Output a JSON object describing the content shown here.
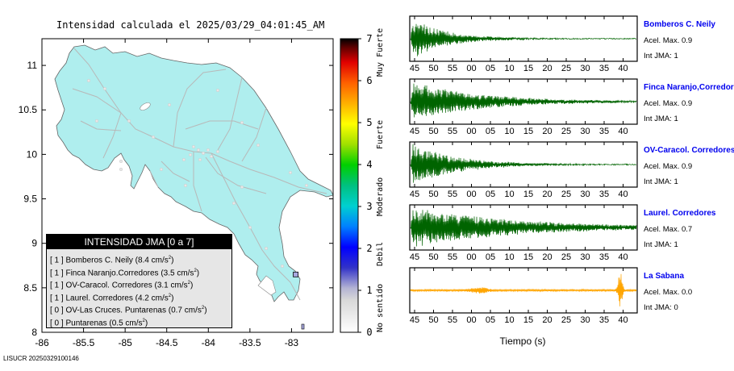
{
  "chart_data": [
    {
      "type": "map",
      "title": "Intensidad calculada el 2025/03/29_04:01:45_AM",
      "xticks": [
        "-86",
        "-85.5",
        "-85",
        "-84.5",
        "-84",
        "-83.5",
        "-83"
      ],
      "yticks": [
        "11",
        "10.5",
        "10",
        "9.5",
        "9",
        "8.5",
        "8"
      ],
      "xlim": [
        -86,
        -82.5
      ],
      "ylim": [
        8,
        11.3
      ],
      "legend": {
        "title": "INTENSIDAD JMA [0 a 7]",
        "entries": [
          {
            "bracket": "[ 1 ]",
            "name": "Bomberos C. Neily",
            "accel": "(8.4 cm/s",
            "exp": "2",
            "close": ")"
          },
          {
            "bracket": "[ 1 ]",
            "name": "Finca Naranjo.Corredores",
            "accel": "(3.5 cm/s",
            "exp": "2",
            "close": ")"
          },
          {
            "bracket": "[ 1 ]",
            "name": "OV-Caracol. Corredores",
            "accel": "(3.1 cm/s",
            "exp": "2",
            "close": ")"
          },
          {
            "bracket": "[ 1 ]",
            "name": "Laurel. Corredores",
            "accel": "(4.2 cm/s",
            "exp": "2",
            "close": ")"
          },
          {
            "bracket": "[ 0 ]",
            "name": "OV-Las Cruces. Puntarenas",
            "accel": "(0.7 cm/s",
            "exp": "2",
            "close": ")"
          },
          {
            "bracket": "[ 0 ]",
            "name": "Puntarenas",
            "accel": "(0.5 cm/s",
            "exp": "2",
            "close": ")"
          }
        ]
      },
      "stations": [
        {
          "name": "Bomberos C. Neily",
          "lon": -82.95,
          "lat": 8.65
        }
      ]
    },
    {
      "type": "heatmap",
      "colorbar": {
        "ticks": [
          "0",
          "1",
          "2",
          "3",
          "4",
          "5",
          "6",
          "7"
        ],
        "range": [
          0,
          7
        ],
        "categories": [
          "No sentido",
          "Debil",
          "Moderado",
          "Fuerte",
          "Muy Fuerte"
        ]
      }
    },
    {
      "type": "line",
      "xlabel": "Tiempo (s)",
      "xticks": [
        "45",
        "50",
        "55",
        "00",
        "05",
        "10",
        "15",
        "20",
        "25",
        "30",
        "35",
        "40"
      ],
      "series": [
        {
          "name": "Bomberos C. Neily",
          "accel_label": "Acel. Max. 0.9",
          "jma_label": "Int JMA: 1",
          "color": "#006400",
          "onset_s": 0,
          "decay": 0.012
        },
        {
          "name": "Finca Naranjo,Corredores",
          "accel_label": "Acel. Max. 0.9",
          "jma_label": "Int JMA: 1",
          "color": "#006400",
          "onset_s": 0,
          "decay": 0.006
        },
        {
          "name": "OV-Caracol. Corredores",
          "accel_label": "Acel. Max. 0.9",
          "jma_label": "Int JMA: 1",
          "color": "#006400",
          "onset_s": 0,
          "decay": 0.009
        },
        {
          "name": "Laurel. Corredores",
          "accel_label": "Acel. Max. 0.7",
          "jma_label": "Int JMA: 1",
          "color": "#006400",
          "onset_s": 0,
          "decay": 0.004
        },
        {
          "name": "La Sabana",
          "accel_label": "Acel. Max. 0.0",
          "jma_label": "Int JMA: 0",
          "color": "#ffa500",
          "onset_s": 0,
          "decay": 0
        }
      ]
    }
  ],
  "footer": "LISUCR 20250329100146"
}
